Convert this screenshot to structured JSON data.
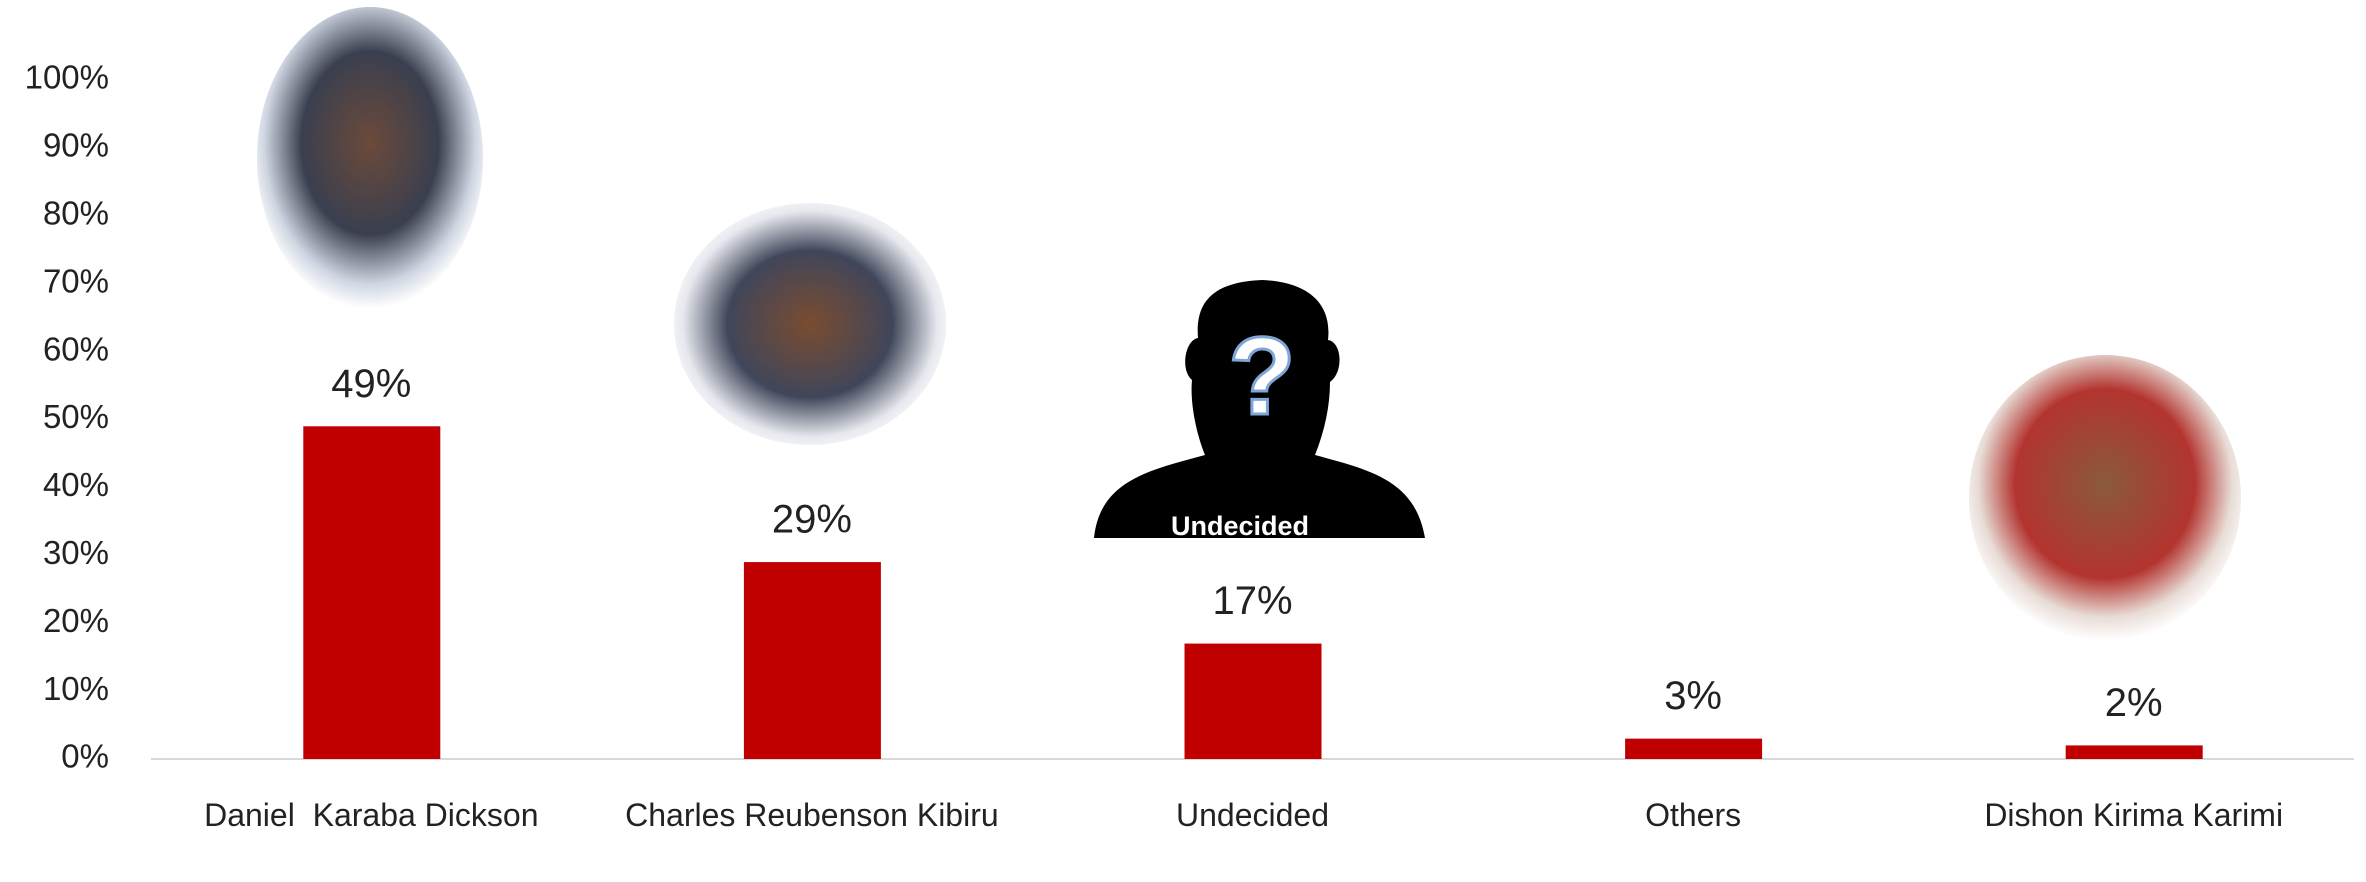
{
  "chart_data": {
    "type": "bar",
    "categories": [
      "Daniel  Karaba Dickson",
      "Charles Reubenson Kibiru",
      "Undecided",
      "Others",
      "Dishon Kirima Karimi"
    ],
    "values": [
      49,
      29,
      17,
      3,
      2
    ],
    "value_labels": [
      "49%",
      "29%",
      "17%",
      "3%",
      "2%"
    ],
    "color": "#c00000",
    "ylim": [
      0,
      100
    ],
    "yticks": [
      {
        "value": 0,
        "label": "0%"
      },
      {
        "value": 10,
        "label": "10%"
      },
      {
        "value": 20,
        "label": "20%"
      },
      {
        "value": 30,
        "label": "30%"
      },
      {
        "value": 40,
        "label": "40%"
      },
      {
        "value": 50,
        "label": "50%"
      },
      {
        "value": 60,
        "label": "60%"
      },
      {
        "value": 70,
        "label": "70%"
      },
      {
        "value": 80,
        "label": "80%"
      },
      {
        "value": 90,
        "label": "90%"
      },
      {
        "value": 100,
        "label": "100%"
      }
    ],
    "grid": false,
    "annotation": "Undecided"
  }
}
